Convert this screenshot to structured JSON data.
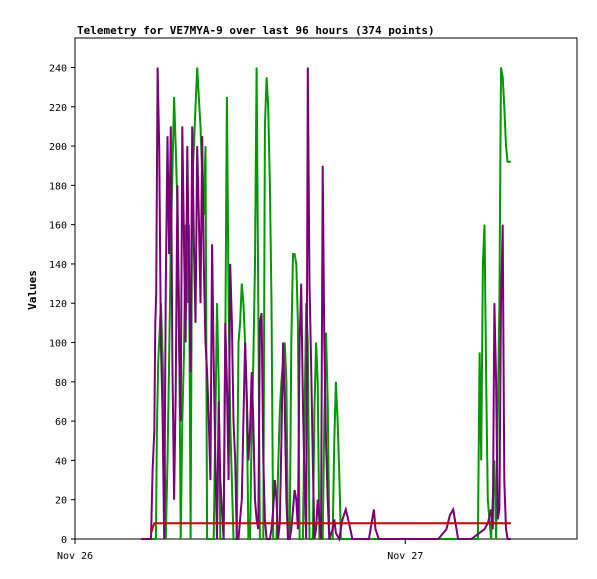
{
  "chart_data": {
    "type": "line",
    "title": "Telemetry for VE7MYA-9 over last 96 hours (374 points)",
    "ylabel": "Values",
    "xlabel": "",
    "ylim": [
      0,
      255
    ],
    "xlim": [
      0,
      1.52
    ],
    "yticks": [
      0,
      20,
      40,
      60,
      80,
      100,
      120,
      140,
      160,
      180,
      200,
      220,
      240
    ],
    "xticks": [
      {
        "x": 0,
        "label": "Nov 26"
      },
      {
        "x": 1,
        "label": "Nov 27"
      }
    ],
    "grid": false,
    "series": [
      {
        "color": "#009900",
        "points": [
          [
            0.23,
            0
          ],
          [
            0.245,
            0
          ],
          [
            0.248,
            55
          ],
          [
            0.252,
            90
          ],
          [
            0.26,
            120
          ],
          [
            0.265,
            95
          ],
          [
            0.27,
            60
          ],
          [
            0.275,
            0
          ],
          [
            0.28,
            40
          ],
          [
            0.285,
            90
          ],
          [
            0.29,
            150
          ],
          [
            0.3,
            225
          ],
          [
            0.305,
            200
          ],
          [
            0.31,
            170
          ],
          [
            0.315,
            120
          ],
          [
            0.32,
            0
          ],
          [
            0.325,
            60
          ],
          [
            0.33,
            95
          ],
          [
            0.335,
            160
          ],
          [
            0.34,
            120
          ],
          [
            0.345,
            160
          ],
          [
            0.35,
            0
          ],
          [
            0.355,
            180
          ],
          [
            0.36,
            200
          ],
          [
            0.365,
            220
          ],
          [
            0.37,
            240
          ],
          [
            0.375,
            225
          ],
          [
            0.38,
            210
          ],
          [
            0.385,
            185
          ],
          [
            0.39,
            165
          ],
          [
            0.395,
            200
          ],
          [
            0.4,
            0
          ],
          [
            0.41,
            0
          ],
          [
            0.42,
            0
          ],
          [
            0.425,
            60
          ],
          [
            0.43,
            120
          ],
          [
            0.435,
            80
          ],
          [
            0.44,
            0
          ],
          [
            0.45,
            0
          ],
          [
            0.455,
            100
          ],
          [
            0.46,
            225
          ],
          [
            0.465,
            120
          ],
          [
            0.47,
            60
          ],
          [
            0.48,
            0
          ],
          [
            0.49,
            0
          ],
          [
            0.495,
            100
          ],
          [
            0.5,
            110
          ],
          [
            0.505,
            130
          ],
          [
            0.51,
            120
          ],
          [
            0.515,
            100
          ],
          [
            0.52,
            70
          ],
          [
            0.525,
            0
          ],
          [
            0.53,
            0
          ],
          [
            0.535,
            55
          ],
          [
            0.54,
            90
          ],
          [
            0.545,
            140
          ],
          [
            0.55,
            240
          ],
          [
            0.555,
            120
          ],
          [
            0.56,
            0
          ],
          [
            0.57,
            0
          ],
          [
            0.575,
            210
          ],
          [
            0.58,
            235
          ],
          [
            0.585,
            220
          ],
          [
            0.59,
            180
          ],
          [
            0.595,
            120
          ],
          [
            0.6,
            0
          ],
          [
            0.61,
            0
          ],
          [
            0.615,
            35
          ],
          [
            0.62,
            65
          ],
          [
            0.625,
            80
          ],
          [
            0.63,
            90
          ],
          [
            0.635,
            100
          ],
          [
            0.64,
            80
          ],
          [
            0.645,
            0
          ],
          [
            0.65,
            0
          ],
          [
            0.655,
            100
          ],
          [
            0.66,
            145
          ],
          [
            0.665,
            145
          ],
          [
            0.67,
            140
          ],
          [
            0.675,
            110
          ],
          [
            0.68,
            0
          ],
          [
            0.69,
            0
          ],
          [
            0.695,
            60
          ],
          [
            0.7,
            120
          ],
          [
            0.705,
            100
          ],
          [
            0.71,
            0
          ],
          [
            0.72,
            0
          ],
          [
            0.725,
            65
          ],
          [
            0.73,
            100
          ],
          [
            0.735,
            80
          ],
          [
            0.74,
            0
          ],
          [
            0.75,
            0
          ],
          [
            0.755,
            60
          ],
          [
            0.76,
            105
          ],
          [
            0.765,
            70
          ],
          [
            0.77,
            0
          ],
          [
            0.78,
            0
          ],
          [
            0.785,
            50
          ],
          [
            0.79,
            80
          ],
          [
            0.795,
            60
          ],
          [
            0.8,
            35
          ],
          [
            0.805,
            0
          ],
          [
            0.82,
            0
          ],
          [
            0.85,
            0
          ],
          [
            0.9,
            0
          ],
          [
            0.95,
            0
          ],
          [
            1.0,
            0
          ],
          [
            1.05,
            0
          ],
          [
            1.1,
            0
          ],
          [
            1.2,
            0
          ],
          [
            1.22,
            0
          ],
          [
            1.225,
            95
          ],
          [
            1.23,
            40
          ],
          [
            1.235,
            140
          ],
          [
            1.24,
            160
          ],
          [
            1.245,
            80
          ],
          [
            1.25,
            20
          ],
          [
            1.26,
            0
          ],
          [
            1.27,
            40
          ],
          [
            1.275,
            0
          ],
          [
            1.28,
            60
          ],
          [
            1.285,
            120
          ],
          [
            1.29,
            240
          ],
          [
            1.295,
            235
          ],
          [
            1.3,
            220
          ],
          [
            1.305,
            200
          ],
          [
            1.31,
            192
          ],
          [
            1.32,
            192
          ]
        ]
      },
      {
        "color": "#7b0077",
        "points": [
          [
            0.2,
            0
          ],
          [
            0.23,
            0
          ],
          [
            0.235,
            35
          ],
          [
            0.24,
            55
          ],
          [
            0.243,
            110
          ],
          [
            0.246,
            125
          ],
          [
            0.25,
            240
          ],
          [
            0.255,
            200
          ],
          [
            0.26,
            100
          ],
          [
            0.265,
            65
          ],
          [
            0.27,
            0
          ],
          [
            0.275,
            130
          ],
          [
            0.28,
            205
          ],
          [
            0.285,
            145
          ],
          [
            0.29,
            210
          ],
          [
            0.295,
            90
          ],
          [
            0.3,
            20
          ],
          [
            0.305,
            75
          ],
          [
            0.31,
            180
          ],
          [
            0.315,
            100
          ],
          [
            0.32,
            60
          ],
          [
            0.325,
            210
          ],
          [
            0.33,
            150
          ],
          [
            0.335,
            100
          ],
          [
            0.34,
            200
          ],
          [
            0.345,
            140
          ],
          [
            0.35,
            85
          ],
          [
            0.355,
            210
          ],
          [
            0.36,
            150
          ],
          [
            0.365,
            110
          ],
          [
            0.37,
            200
          ],
          [
            0.375,
            165
          ],
          [
            0.38,
            120
          ],
          [
            0.385,
            205
          ],
          [
            0.39,
            140
          ],
          [
            0.395,
            100
          ],
          [
            0.4,
            85
          ],
          [
            0.405,
            60
          ],
          [
            0.41,
            30
          ],
          [
            0.415,
            150
          ],
          [
            0.42,
            90
          ],
          [
            0.425,
            40
          ],
          [
            0.43,
            0
          ],
          [
            0.435,
            70
          ],
          [
            0.44,
            30
          ],
          [
            0.45,
            0
          ],
          [
            0.455,
            110
          ],
          [
            0.46,
            80
          ],
          [
            0.465,
            30
          ],
          [
            0.47,
            140
          ],
          [
            0.475,
            110
          ],
          [
            0.48,
            60
          ],
          [
            0.485,
            40
          ],
          [
            0.49,
            0
          ],
          [
            0.495,
            0
          ],
          [
            0.5,
            10
          ],
          [
            0.505,
            20
          ],
          [
            0.51,
            60
          ],
          [
            0.515,
            100
          ],
          [
            0.52,
            75
          ],
          [
            0.525,
            40
          ],
          [
            0.53,
            55
          ],
          [
            0.535,
            85
          ],
          [
            0.54,
            60
          ],
          [
            0.545,
            20
          ],
          [
            0.55,
            10
          ],
          [
            0.555,
            5
          ],
          [
            0.56,
            110
          ],
          [
            0.565,
            115
          ],
          [
            0.57,
            40
          ],
          [
            0.575,
            10
          ],
          [
            0.58,
            0
          ],
          [
            0.59,
            0
          ],
          [
            0.595,
            5
          ],
          [
            0.6,
            15
          ],
          [
            0.605,
            30
          ],
          [
            0.61,
            20
          ],
          [
            0.615,
            0
          ],
          [
            0.62,
            8
          ],
          [
            0.625,
            50
          ],
          [
            0.63,
            100
          ],
          [
            0.635,
            70
          ],
          [
            0.64,
            20
          ],
          [
            0.645,
            0
          ],
          [
            0.65,
            0
          ],
          [
            0.655,
            5
          ],
          [
            0.66,
            15
          ],
          [
            0.665,
            25
          ],
          [
            0.67,
            20
          ],
          [
            0.675,
            5
          ],
          [
            0.68,
            100
          ],
          [
            0.685,
            130
          ],
          [
            0.69,
            70
          ],
          [
            0.695,
            30
          ],
          [
            0.7,
            0
          ],
          [
            0.705,
            240
          ],
          [
            0.71,
            130
          ],
          [
            0.715,
            90
          ],
          [
            0.72,
            40
          ],
          [
            0.725,
            0
          ],
          [
            0.73,
            5
          ],
          [
            0.735,
            20
          ],
          [
            0.74,
            10
          ],
          [
            0.745,
            0
          ],
          [
            0.75,
            190
          ],
          [
            0.755,
            100
          ],
          [
            0.76,
            50
          ],
          [
            0.765,
            20
          ],
          [
            0.77,
            0
          ],
          [
            0.78,
            5
          ],
          [
            0.785,
            10
          ],
          [
            0.79,
            3
          ],
          [
            0.8,
            0
          ],
          [
            0.81,
            10
          ],
          [
            0.82,
            15
          ],
          [
            0.83,
            8
          ],
          [
            0.84,
            0
          ],
          [
            0.87,
            0
          ],
          [
            0.89,
            0
          ],
          [
            0.9,
            10
          ],
          [
            0.905,
            15
          ],
          [
            0.91,
            5
          ],
          [
            0.92,
            0
          ],
          [
            1.0,
            0
          ],
          [
            1.1,
            0
          ],
          [
            1.125,
            5
          ],
          [
            1.135,
            12
          ],
          [
            1.145,
            15
          ],
          [
            1.155,
            5
          ],
          [
            1.16,
            0
          ],
          [
            1.2,
            0
          ],
          [
            1.24,
            5
          ],
          [
            1.25,
            8
          ],
          [
            1.26,
            15
          ],
          [
            1.265,
            5
          ],
          [
            1.27,
            120
          ],
          [
            1.275,
            80
          ],
          [
            1.28,
            10
          ],
          [
            1.285,
            15
          ],
          [
            1.29,
            120
          ],
          [
            1.295,
            160
          ],
          [
            1.3,
            30
          ],
          [
            1.305,
            5
          ],
          [
            1.31,
            0
          ],
          [
            1.32,
            0
          ]
        ]
      },
      {
        "color": "#cc0000",
        "points": [
          [
            0.23,
            3
          ],
          [
            0.24,
            8
          ],
          [
            0.3,
            8
          ],
          [
            0.4,
            8
          ],
          [
            0.5,
            8
          ],
          [
            0.6,
            8
          ],
          [
            0.7,
            8
          ],
          [
            0.8,
            8
          ],
          [
            0.9,
            8
          ],
          [
            1.0,
            8
          ],
          [
            1.1,
            8
          ],
          [
            1.2,
            8
          ],
          [
            1.3,
            8
          ],
          [
            1.32,
            8
          ]
        ]
      }
    ]
  }
}
